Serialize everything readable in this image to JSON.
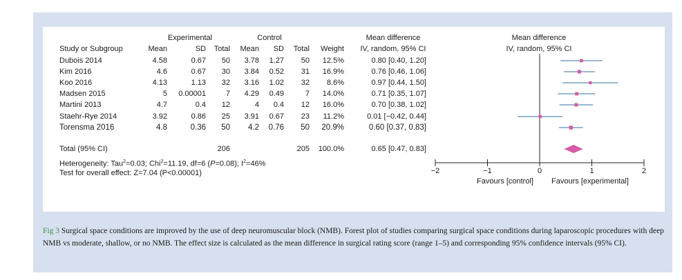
{
  "colors": {
    "panel": "#d7e0ee",
    "marker": "#d65aa6",
    "ci_line": "#2f6f9f",
    "axis": "#222222",
    "caption_fig": "#3a8c4f"
  },
  "header": {
    "group_experimental": "Experimental",
    "group_control": "Control",
    "group_md": "Mean difference",
    "group_md_plot": "Mean difference",
    "col_study": "Study or Subgroup",
    "col_mean_e": "Mean",
    "col_sd_e": "SD",
    "col_total_e": "Total",
    "col_mean_c": "Mean",
    "col_sd_c": "SD",
    "col_total_c": "Total",
    "col_weight": "Weight",
    "col_md": "IV, random, 95% CI",
    "col_md_plot": "IV, random, 95% CI"
  },
  "rows": [
    {
      "study": "Dubois 2014",
      "mean_e": "4.58",
      "sd_e": "0.67",
      "total_e": "50",
      "mean_c": "3.78",
      "sd_c": "1.27",
      "total_c": "50",
      "weight": "12.5%",
      "md_text": "0.80 [0.40, 1.20]"
    },
    {
      "study": "Kim 2016",
      "mean_e": "4.6",
      "sd_e": "0.67",
      "total_e": "30",
      "mean_c": "3.84",
      "sd_c": "0.52",
      "total_c": "31",
      "weight": "16.9%",
      "md_text": "0.76 [0.46, 1.06]"
    },
    {
      "study": "Koo 2016",
      "mean_e": "4.13",
      "sd_e": "1.13",
      "total_e": "32",
      "mean_c": "3.16",
      "sd_c": "1.02",
      "total_c": "32",
      "weight": "8.6%",
      "md_text": "0.97 [0.44, 1.50]"
    },
    {
      "study": "Madsen 2015",
      "mean_e": "5",
      "sd_e": "0.00001",
      "total_e": "7",
      "mean_c": "4.29",
      "sd_c": "0.49",
      "total_c": "7",
      "weight": "14.0%",
      "md_text": "0.71 [0.35, 1.07]"
    },
    {
      "study": "Martini 2013",
      "mean_e": "4.7",
      "sd_e": "0.4",
      "total_e": "12",
      "mean_c": "4",
      "sd_c": "0.4",
      "total_c": "12",
      "weight": "16.0%",
      "md_text": "0.70 [0.38, 1.02]"
    },
    {
      "study": "Staehr-Rye 2014",
      "mean_e": "3.92",
      "sd_e": "0.86",
      "total_e": "25",
      "mean_c": "3.91",
      "sd_c": "0.67",
      "total_c": "23",
      "weight": "11.2%",
      "md_text": "0.01 [−0.42, 0.44]"
    },
    {
      "study": "Torensma 2016",
      "mean_e": "4.8",
      "sd_e": "0.36",
      "total_e": "50",
      "mean_c": "4.2",
      "sd_c": "0.76",
      "total_c": "50",
      "weight": "20.9%",
      "md_text": "0.60 [0.37, 0.83]"
    }
  ],
  "total": {
    "label": "Total (95% CI)",
    "total_e": "206",
    "total_c": "205",
    "weight": "100.0%",
    "md_text": "0.65 [0.47, 0.83]"
  },
  "heterogeneity": {
    "prefix": "Heterogeneity: Tau",
    "sup1": "2",
    "mid1": "=0.03; Chi",
    "sup2": "2",
    "mid2": "=11.19, df=6 (",
    "p_italic": "P",
    "mid3": "=0.08); I",
    "sup3": "2",
    "end": "=46%"
  },
  "overall_effect": "Test for overall effect: Z=7.04 (P<0.00001)",
  "favours_left": "Favours [control]",
  "favours_right": "Favours [experimental]",
  "caption": {
    "fig_label": "Fig 3",
    "text": " Surgical space conditions are improved by the use of deep neuromuscular block (NMB). Forest plot of studies comparing surgical space conditions during laparoscopic procedures with deep NMB vs moderate, shallow, or no NMB. The effect size is calculated as the mean difference in surgical rating score (range 1–5) and corresponding 95% confidence intervals (95% CI)."
  },
  "chart_data": {
    "type": "forest",
    "xlim": [
      -2,
      2
    ],
    "ticks": [
      -2,
      -1,
      0,
      1,
      2
    ],
    "tick_labels": [
      "−2",
      "−1",
      "0",
      "1",
      "2"
    ],
    "studies": [
      {
        "name": "Dubois 2014",
        "md": 0.8,
        "lo": 0.4,
        "hi": 1.2,
        "weight": 12.5
      },
      {
        "name": "Kim 2016",
        "md": 0.76,
        "lo": 0.46,
        "hi": 1.06,
        "weight": 16.9
      },
      {
        "name": "Koo 2016",
        "md": 0.97,
        "lo": 0.44,
        "hi": 1.5,
        "weight": 8.6
      },
      {
        "name": "Madsen 2015",
        "md": 0.71,
        "lo": 0.35,
        "hi": 1.07,
        "weight": 14.0
      },
      {
        "name": "Martini 2013",
        "md": 0.7,
        "lo": 0.38,
        "hi": 1.02,
        "weight": 16.0
      },
      {
        "name": "Staehr-Rye 2014",
        "md": 0.01,
        "lo": -0.42,
        "hi": 0.44,
        "weight": 11.2
      },
      {
        "name": "Torensma 2016",
        "md": 0.6,
        "lo": 0.37,
        "hi": 0.83,
        "weight": 20.9
      }
    ],
    "pooled": {
      "md": 0.65,
      "lo": 0.47,
      "hi": 0.83
    }
  }
}
